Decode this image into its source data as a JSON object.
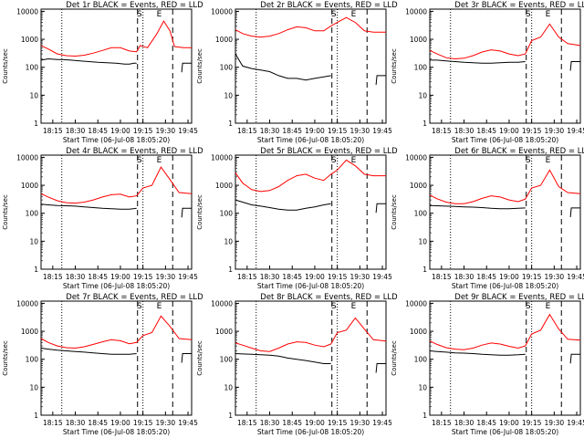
{
  "shared": {
    "ylabel": "Counts/sec",
    "xlabel": "Start Time (06-Jul-08 18:05:20)",
    "x_tick_labels": [
      "18:15",
      "18:30",
      "18:45",
      "19:00",
      "19:15",
      "19:30",
      "19:45"
    ],
    "y_tick_labels": [
      "1",
      "10",
      "100",
      "1000",
      "10000"
    ],
    "markers": [
      {
        "label": "S",
        "x": 19.21
      },
      {
        "label": "E",
        "x": 19.43
      }
    ],
    "colors": {
      "events": "#000000",
      "lld": "#ff0000"
    }
  },
  "chart_data": [
    {
      "type": "line",
      "title": "Det 1r BLACK = Events, RED = LLD",
      "xlim": [
        18.12,
        19.79
      ],
      "ylim": [
        1,
        12000
      ],
      "log_y": true,
      "dotted_x": [
        18.35,
        19.25
      ],
      "dashed_x": [
        19.19,
        19.58
      ],
      "series": [
        {
          "name": "Events",
          "color": "#000000",
          "x": [
            18.12,
            18.2,
            18.3,
            18.36,
            18.45,
            18.55,
            18.65,
            18.75,
            18.85,
            18.95,
            19.05,
            19.1,
            19.15,
            19.18
          ],
          "y": [
            180,
            200,
            190,
            190,
            180,
            170,
            160,
            150,
            145,
            140,
            130,
            130,
            140,
            140
          ]
        },
        {
          "name": "LLD",
          "color": "#ff0000",
          "x": [
            18.12,
            18.2,
            18.3,
            18.4,
            18.5,
            18.6,
            18.7,
            18.8,
            18.9,
            19.0,
            19.1,
            19.18,
            19.22,
            19.3,
            19.4,
            19.48,
            19.55,
            19.6,
            19.7,
            19.79
          ],
          "y": [
            600,
            450,
            300,
            260,
            250,
            270,
            320,
            400,
            500,
            500,
            380,
            360,
            600,
            500,
            1500,
            4500,
            2000,
            550,
            500,
            500
          ]
        }
      ]
    },
    {
      "type": "line",
      "title": "Det 2r BLACK = Events, RED = LLD",
      "xlim": [
        18.12,
        19.79
      ],
      "ylim": [
        1,
        12000
      ],
      "log_y": true,
      "dotted_x": [
        18.35,
        19.25
      ],
      "dashed_x": [
        19.19,
        19.58
      ],
      "series": [
        {
          "name": "Events",
          "color": "#000000",
          "x": [
            18.12,
            18.2,
            18.3,
            18.4,
            18.5,
            18.6,
            18.7,
            18.8,
            18.9,
            19.0,
            19.1,
            19.18
          ],
          "y": [
            300,
            110,
            90,
            80,
            70,
            50,
            40,
            40,
            35,
            40,
            45,
            50
          ]
        },
        {
          "name": "LLD",
          "color": "#ff0000",
          "x": [
            18.12,
            18.2,
            18.3,
            18.4,
            18.5,
            18.6,
            18.7,
            18.8,
            18.9,
            19.0,
            19.1,
            19.18,
            19.25,
            19.35,
            19.45,
            19.55,
            19.65,
            19.79
          ],
          "y": [
            2200,
            1600,
            1300,
            1200,
            1300,
            1600,
            2200,
            2800,
            2600,
            2000,
            2000,
            3000,
            4000,
            6000,
            4000,
            2000,
            1800,
            1800
          ]
        }
      ]
    },
    {
      "type": "line",
      "title": "Det 3r BLACK = Events, RED = LLD",
      "xlim": [
        18.12,
        19.79
      ],
      "ylim": [
        1,
        12000
      ],
      "log_y": true,
      "dotted_x": [
        18.35,
        19.25
      ],
      "dashed_x": [
        19.19,
        19.58
      ],
      "series": [
        {
          "name": "Events",
          "color": "#000000",
          "x": [
            18.12,
            18.2,
            18.3,
            18.4,
            18.5,
            18.6,
            18.7,
            18.8,
            18.9,
            19.0,
            19.1,
            19.18
          ],
          "y": [
            180,
            180,
            170,
            160,
            150,
            145,
            140,
            140,
            145,
            150,
            150,
            160
          ]
        },
        {
          "name": "LLD",
          "color": "#ff0000",
          "x": [
            18.12,
            18.2,
            18.3,
            18.4,
            18.5,
            18.6,
            18.7,
            18.8,
            18.9,
            19.0,
            19.1,
            19.18,
            19.25,
            19.35,
            19.45,
            19.55,
            19.65,
            19.79
          ],
          "y": [
            400,
            300,
            220,
            200,
            210,
            260,
            350,
            420,
            380,
            300,
            260,
            300,
            900,
            1200,
            3500,
            1200,
            700,
            600
          ]
        }
      ]
    },
    {
      "type": "line",
      "title": "Det 4r BLACK = Events, RED = LLD",
      "xlim": [
        18.12,
        19.79
      ],
      "ylim": [
        1,
        12000
      ],
      "log_y": true,
      "dotted_x": [
        18.35,
        19.25
      ],
      "dashed_x": [
        19.19,
        19.58
      ],
      "series": [
        {
          "name": "Events",
          "color": "#000000",
          "x": [
            18.12,
            18.2,
            18.3,
            18.4,
            18.5,
            18.6,
            18.7,
            18.8,
            18.9,
            19.0,
            19.1,
            19.18
          ],
          "y": [
            210,
            200,
            190,
            185,
            180,
            170,
            160,
            150,
            145,
            140,
            140,
            150
          ]
        },
        {
          "name": "LLD",
          "color": "#ff0000",
          "x": [
            18.12,
            18.2,
            18.3,
            18.4,
            18.5,
            18.6,
            18.7,
            18.8,
            18.9,
            19.0,
            19.1,
            19.18,
            19.25,
            19.35,
            19.45,
            19.55,
            19.65,
            19.79
          ],
          "y": [
            500,
            380,
            280,
            240,
            230,
            250,
            300,
            380,
            460,
            480,
            380,
            420,
            800,
            1000,
            4500,
            1600,
            550,
            500
          ]
        }
      ]
    },
    {
      "type": "line",
      "title": "Det 5r BLACK = Events, RED = LLD",
      "xlim": [
        18.12,
        19.79
      ],
      "ylim": [
        1,
        12000
      ],
      "log_y": true,
      "dotted_x": [
        18.35,
        19.25
      ],
      "dashed_x": [
        19.19,
        19.58
      ],
      "series": [
        {
          "name": "Events",
          "color": "#000000",
          "x": [
            18.12,
            18.2,
            18.3,
            18.4,
            18.5,
            18.6,
            18.7,
            18.8,
            18.9,
            19.0,
            19.1,
            19.18
          ],
          "y": [
            300,
            250,
            200,
            180,
            160,
            140,
            130,
            130,
            150,
            170,
            200,
            220
          ]
        },
        {
          "name": "LLD",
          "color": "#ff0000",
          "x": [
            18.12,
            18.2,
            18.3,
            18.4,
            18.5,
            18.6,
            18.7,
            18.8,
            18.9,
            19.0,
            19.1,
            19.18,
            19.25,
            19.35,
            19.45,
            19.55,
            19.65,
            19.79
          ],
          "y": [
            2800,
            1200,
            700,
            600,
            650,
            900,
            1500,
            2200,
            2500,
            1800,
            1500,
            2500,
            3500,
            8000,
            5000,
            2500,
            2200,
            2200
          ]
        }
      ]
    },
    {
      "type": "line",
      "title": "Det 6r BLACK = Events, RED = LLD",
      "xlim": [
        18.12,
        19.79
      ],
      "ylim": [
        1,
        12000
      ],
      "log_y": true,
      "dotted_x": [
        18.35,
        19.25
      ],
      "dashed_x": [
        19.19,
        19.58
      ],
      "series": [
        {
          "name": "Events",
          "color": "#000000",
          "x": [
            18.12,
            18.2,
            18.3,
            18.4,
            18.5,
            18.6,
            18.7,
            18.8,
            18.9,
            19.0,
            19.1,
            19.18
          ],
          "y": [
            190,
            185,
            180,
            175,
            170,
            165,
            160,
            150,
            145,
            145,
            150,
            155
          ]
        },
        {
          "name": "LLD",
          "color": "#ff0000",
          "x": [
            18.12,
            18.2,
            18.3,
            18.4,
            18.5,
            18.6,
            18.7,
            18.8,
            18.9,
            19.0,
            19.1,
            19.18,
            19.25,
            19.35,
            19.45,
            19.55,
            19.65,
            19.79
          ],
          "y": [
            450,
            330,
            250,
            220,
            220,
            260,
            340,
            420,
            380,
            300,
            260,
            320,
            800,
            1000,
            3500,
            900,
            550,
            500
          ]
        }
      ]
    },
    {
      "type": "line",
      "title": "Det 7r BLACK = Events, RED = LLD",
      "xlim": [
        18.12,
        19.79
      ],
      "ylim": [
        1,
        12000
      ],
      "log_y": true,
      "dotted_x": [
        18.35,
        19.25
      ],
      "dashed_x": [
        19.19,
        19.58
      ],
      "series": [
        {
          "name": "Events",
          "color": "#000000",
          "x": [
            18.12,
            18.2,
            18.3,
            18.4,
            18.5,
            18.6,
            18.7,
            18.8,
            18.9,
            19.0,
            19.1,
            19.18
          ],
          "y": [
            250,
            230,
            210,
            200,
            190,
            180,
            170,
            160,
            150,
            150,
            150,
            160
          ]
        },
        {
          "name": "LLD",
          "color": "#ff0000",
          "x": [
            18.12,
            18.2,
            18.3,
            18.4,
            18.5,
            18.6,
            18.7,
            18.8,
            18.9,
            19.0,
            19.1,
            19.18,
            19.25,
            19.35,
            19.45,
            19.55,
            19.65,
            19.79
          ],
          "y": [
            550,
            400,
            300,
            260,
            250,
            280,
            340,
            420,
            500,
            460,
            360,
            400,
            700,
            900,
            3500,
            1500,
            550,
            500
          ]
        }
      ]
    },
    {
      "type": "line",
      "title": "Det 8r BLACK = Events, RED = LLD",
      "xlim": [
        18.12,
        19.79
      ],
      "ylim": [
        1,
        12000
      ],
      "log_y": true,
      "dotted_x": [
        18.35,
        19.25
      ],
      "dashed_x": [
        19.19,
        19.58
      ],
      "series": [
        {
          "name": "Events",
          "color": "#000000",
          "x": [
            18.12,
            18.2,
            18.3,
            18.4,
            18.5,
            18.6,
            18.7,
            18.8,
            18.9,
            19.0,
            19.1,
            19.18
          ],
          "y": [
            160,
            155,
            150,
            145,
            140,
            130,
            110,
            100,
            90,
            80,
            70,
            70
          ]
        },
        {
          "name": "LLD",
          "color": "#ff0000",
          "x": [
            18.12,
            18.2,
            18.3,
            18.4,
            18.5,
            18.6,
            18.7,
            18.8,
            18.9,
            19.0,
            19.1,
            19.18,
            19.25,
            19.35,
            19.45,
            19.55,
            19.65,
            19.79
          ],
          "y": [
            380,
            320,
            250,
            200,
            190,
            250,
            350,
            420,
            400,
            320,
            280,
            350,
            900,
            1100,
            3000,
            1200,
            500,
            450
          ]
        }
      ]
    },
    {
      "type": "line",
      "title": "Det 9r BLACK = Events, RED = LLD",
      "xlim": [
        18.12,
        19.79
      ],
      "ylim": [
        1,
        12000
      ],
      "log_y": true,
      "dotted_x": [
        18.35,
        19.25
      ],
      "dashed_x": [
        19.19,
        19.58
      ],
      "series": [
        {
          "name": "Events",
          "color": "#000000",
          "x": [
            18.12,
            18.2,
            18.3,
            18.4,
            18.5,
            18.6,
            18.7,
            18.8,
            18.9,
            19.0,
            19.1,
            19.18
          ],
          "y": [
            200,
            190,
            180,
            170,
            165,
            160,
            150,
            145,
            140,
            140,
            145,
            150
          ]
        },
        {
          "name": "LLD",
          "color": "#ff0000",
          "x": [
            18.12,
            18.2,
            18.3,
            18.4,
            18.5,
            18.6,
            18.7,
            18.8,
            18.9,
            19.0,
            19.1,
            19.18,
            19.25,
            19.35,
            19.45,
            19.55,
            19.65,
            19.79
          ],
          "y": [
            450,
            340,
            260,
            230,
            220,
            250,
            320,
            380,
            350,
            290,
            250,
            300,
            800,
            1100,
            4000,
            1200,
            520,
            480
          ]
        }
      ]
    }
  ]
}
